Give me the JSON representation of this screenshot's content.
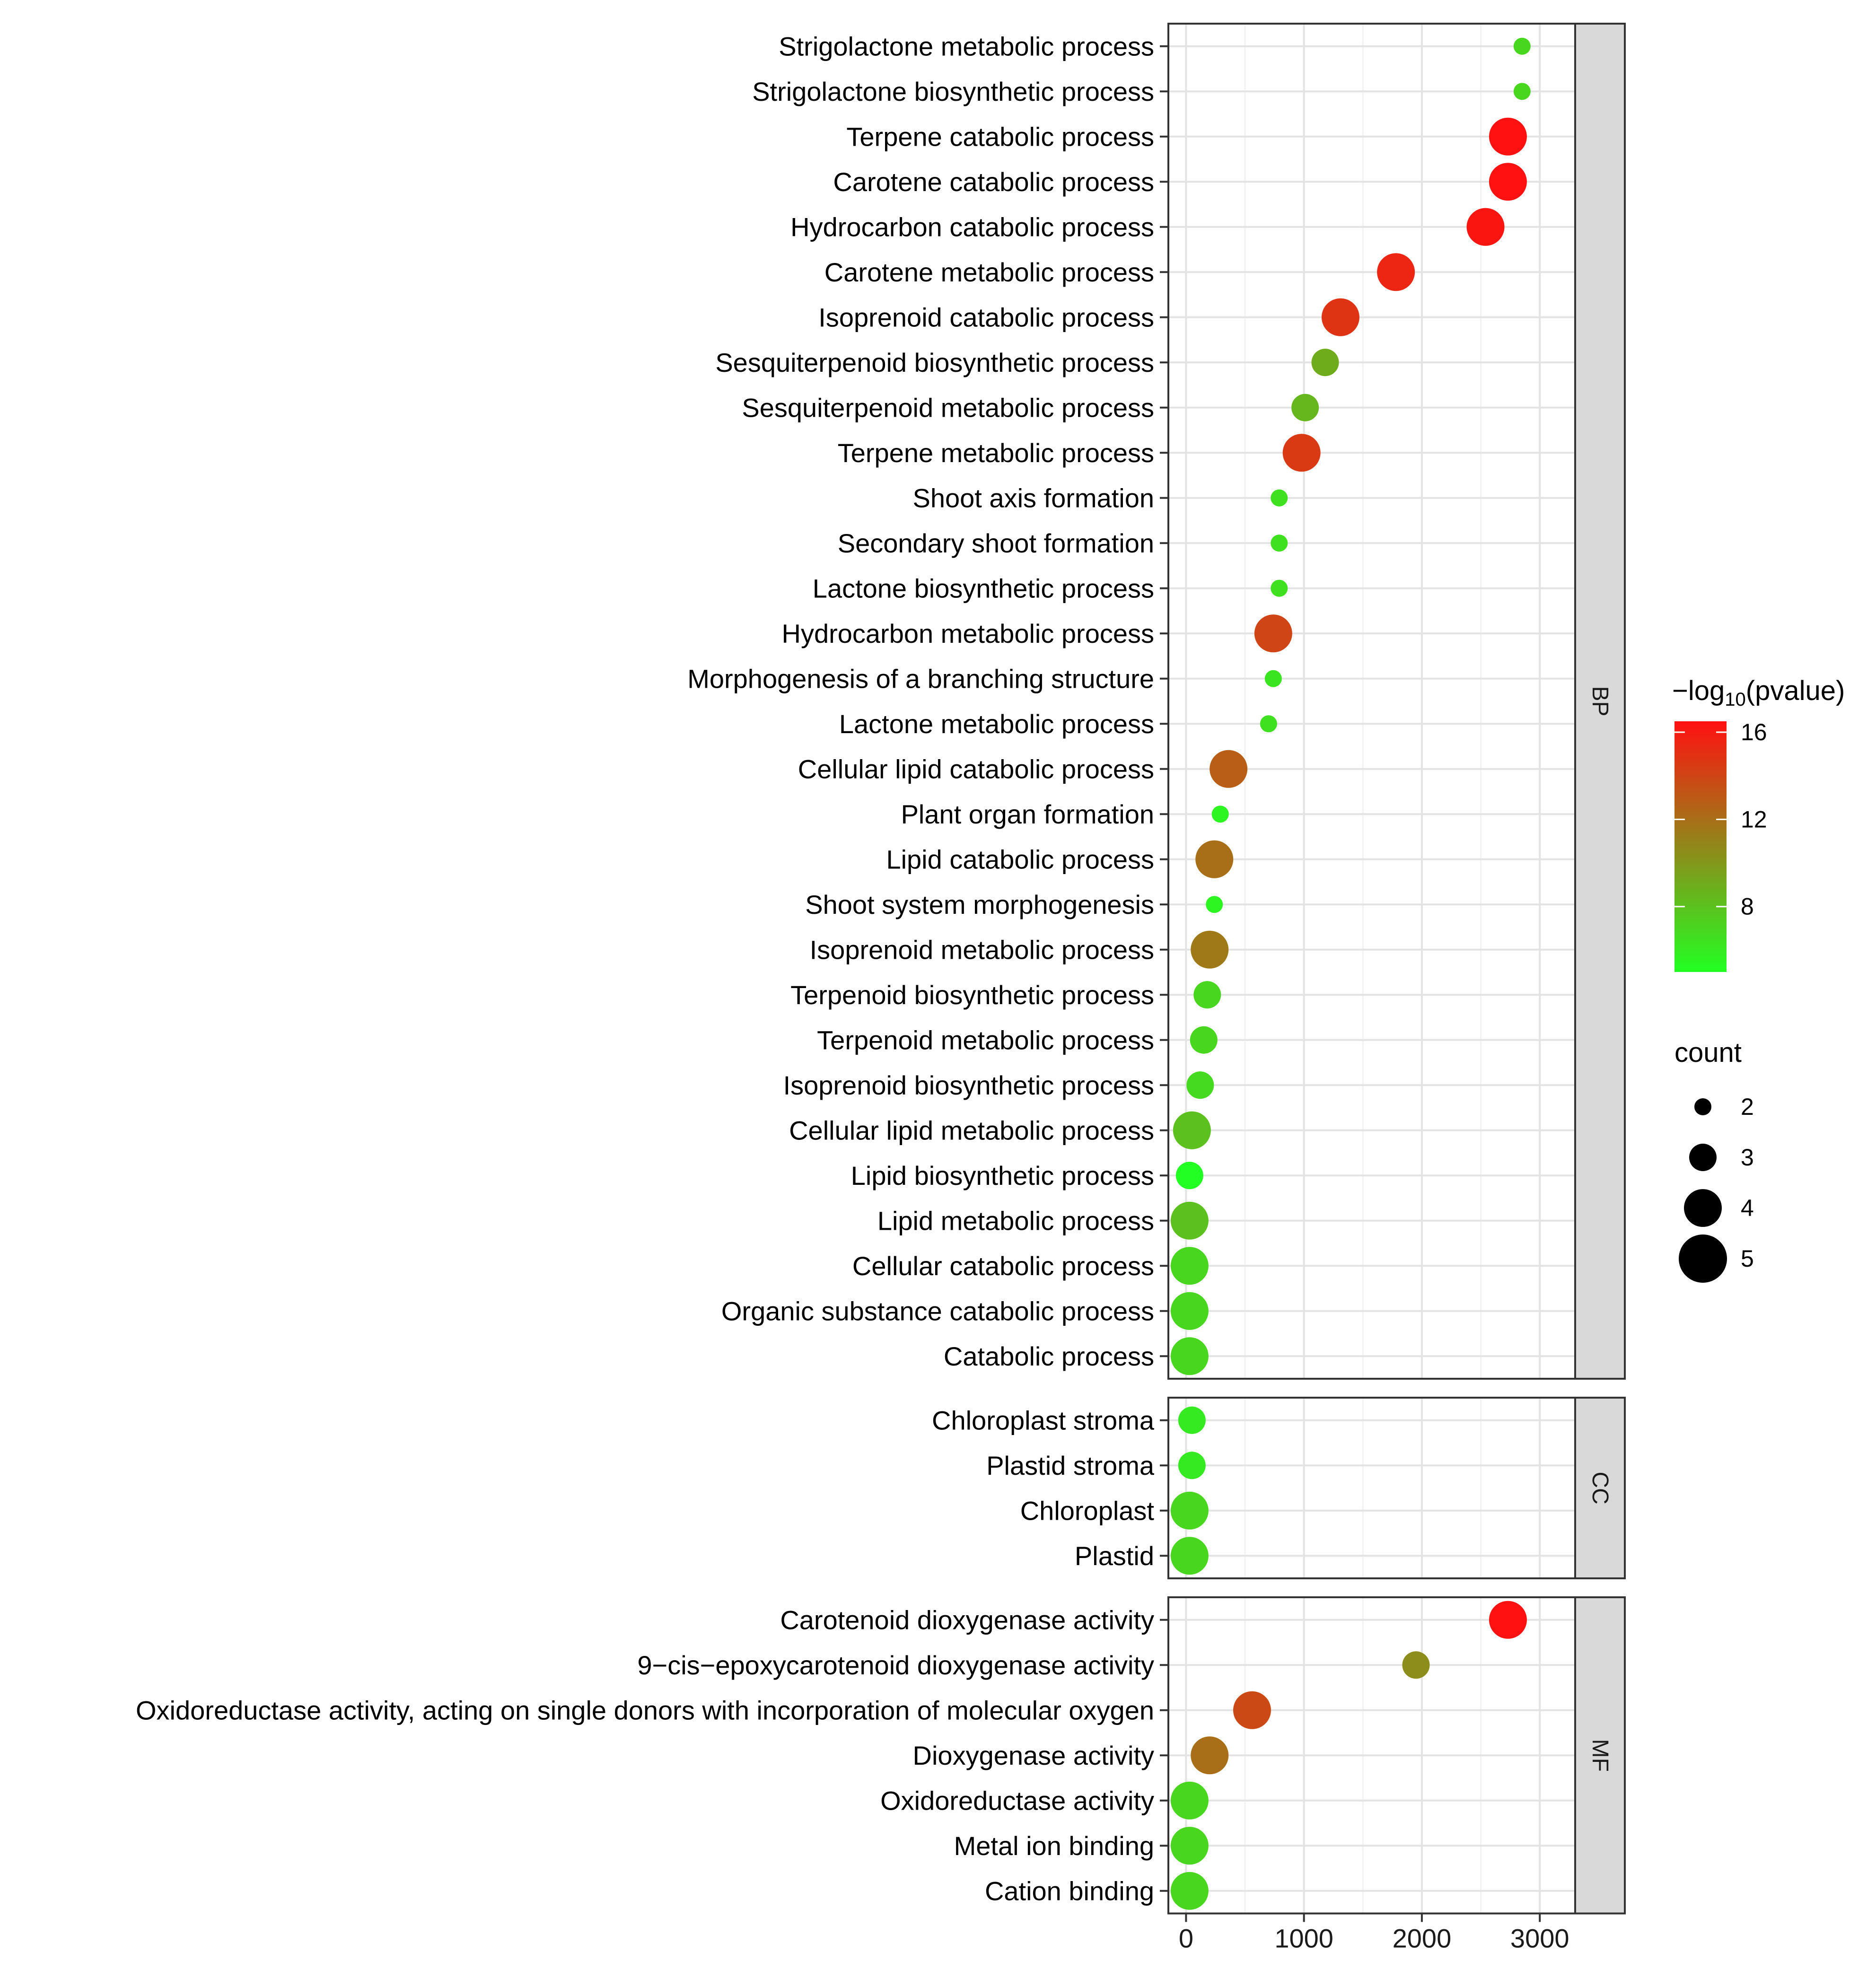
{
  "chart_data": {
    "type": "scatter",
    "title": "",
    "xlabel": "",
    "ylabel": "",
    "xlim": [
      -150,
      3300
    ],
    "x_ticks": [
      0,
      1000,
      2000,
      3000
    ],
    "x_tick_labels": [
      "0",
      "1000",
      "2000",
      "3000"
    ],
    "grid": true,
    "color_legend": {
      "title_prefix": "−log",
      "title_sub": "10",
      "title_suffix": "(pvalue)",
      "min": 5,
      "max": 16.5,
      "ticks": [
        8,
        12,
        16
      ],
      "tick_labels": [
        "8",
        "12",
        "16"
      ],
      "low_color": "#22ff22",
      "high_color": "#ff1111",
      "position": "right"
    },
    "size_legend": {
      "title": "count",
      "values": [
        2,
        3,
        4,
        5
      ],
      "labels": [
        "2",
        "3",
        "4",
        "5"
      ]
    },
    "panels": [
      {
        "name": "BP",
        "terms": [
          {
            "term": "Strigolactone metabolic process",
            "x": 2850,
            "count": 2,
            "neglog10p": 7.0
          },
          {
            "term": "Strigolactone biosynthetic process",
            "x": 2850,
            "count": 2,
            "neglog10p": 7.0
          },
          {
            "term": "Terpene catabolic process",
            "x": 2730,
            "count": 4,
            "neglog10p": 16.5
          },
          {
            "term": "Carotene catabolic process",
            "x": 2730,
            "count": 4,
            "neglog10p": 16.5
          },
          {
            "term": "Hydrocarbon catabolic process",
            "x": 2540,
            "count": 4,
            "neglog10p": 16.3
          },
          {
            "term": "Carotene metabolic process",
            "x": 1780,
            "count": 4,
            "neglog10p": 15.5
          },
          {
            "term": "Isoprenoid catabolic process",
            "x": 1310,
            "count": 4,
            "neglog10p": 14.8
          },
          {
            "term": "Sesquiterpenoid biosynthetic process",
            "x": 1180,
            "count": 3,
            "neglog10p": 9.0
          },
          {
            "term": "Sesquiterpenoid metabolic process",
            "x": 1010,
            "count": 3,
            "neglog10p": 8.5
          },
          {
            "term": "Terpene metabolic process",
            "x": 980,
            "count": 4,
            "neglog10p": 14.5
          },
          {
            "term": "Shoot axis formation",
            "x": 790,
            "count": 2,
            "neglog10p": 6.5
          },
          {
            "term": "Secondary shoot formation",
            "x": 790,
            "count": 2,
            "neglog10p": 6.5
          },
          {
            "term": "Lactone biosynthetic process",
            "x": 790,
            "count": 2,
            "neglog10p": 6.5
          },
          {
            "term": "Hydrocarbon metabolic process",
            "x": 740,
            "count": 4,
            "neglog10p": 14.0
          },
          {
            "term": "Morphogenesis of a branching structure",
            "x": 740,
            "count": 2,
            "neglog10p": 6.3
          },
          {
            "term": "Lactone metabolic process",
            "x": 700,
            "count": 2,
            "neglog10p": 6.5
          },
          {
            "term": "Cellular lipid catabolic process",
            "x": 360,
            "count": 4,
            "neglog10p": 12.8
          },
          {
            "term": "Plant organ formation",
            "x": 290,
            "count": 2,
            "neglog10p": 5.5
          },
          {
            "term": "Lipid catabolic process",
            "x": 240,
            "count": 4,
            "neglog10p": 12.0
          },
          {
            "term": "Shoot system morphogenesis",
            "x": 240,
            "count": 2,
            "neglog10p": 5.5
          },
          {
            "term": "Isoprenoid metabolic process",
            "x": 200,
            "count": 4,
            "neglog10p": 11.5
          },
          {
            "term": "Terpenoid biosynthetic process",
            "x": 180,
            "count": 3,
            "neglog10p": 7.0
          },
          {
            "term": "Terpenoid metabolic process",
            "x": 150,
            "count": 3,
            "neglog10p": 7.0
          },
          {
            "term": "Isoprenoid biosynthetic process",
            "x": 120,
            "count": 3,
            "neglog10p": 6.8
          },
          {
            "term": "Cellular lipid metabolic process",
            "x": 50,
            "count": 4,
            "neglog10p": 8.0
          },
          {
            "term": "Lipid biosynthetic process",
            "x": 30,
            "count": 3,
            "neglog10p": 5.0
          },
          {
            "term": "Lipid metabolic process",
            "x": 30,
            "count": 4,
            "neglog10p": 8.0
          },
          {
            "term": "Cellular catabolic process",
            "x": 30,
            "count": 4,
            "neglog10p": 7.0
          },
          {
            "term": "Organic substance catabolic process",
            "x": 30,
            "count": 4,
            "neglog10p": 7.0
          },
          {
            "term": "Catabolic process",
            "x": 30,
            "count": 4,
            "neglog10p": 7.0
          }
        ]
      },
      {
        "name": "CC",
        "terms": [
          {
            "term": "Chloroplast stroma",
            "x": 50,
            "count": 3,
            "neglog10p": 6.0
          },
          {
            "term": "Plastid stroma",
            "x": 50,
            "count": 3,
            "neglog10p": 6.0
          },
          {
            "term": "Chloroplast",
            "x": 30,
            "count": 4,
            "neglog10p": 7.0
          },
          {
            "term": "Plastid",
            "x": 30,
            "count": 4,
            "neglog10p": 7.0
          }
        ]
      },
      {
        "name": "MF",
        "terms": [
          {
            "term": "Carotenoid dioxygenase activity",
            "x": 2730,
            "count": 4,
            "neglog10p": 16.5
          },
          {
            "term": "9−cis−epoxycarotenoid dioxygenase activity",
            "x": 1950,
            "count": 3,
            "neglog10p": 10.5
          },
          {
            "term": "Oxidoreductase activity, acting on single donors with incorporation of molecular oxygen",
            "x": 560,
            "count": 4,
            "neglog10p": 13.8
          },
          {
            "term": "Dioxygenase activity",
            "x": 200,
            "count": 4,
            "neglog10p": 12.0
          },
          {
            "term": "Oxidoreductase activity",
            "x": 30,
            "count": 4,
            "neglog10p": 7.0
          },
          {
            "term": "Metal ion binding",
            "x": 30,
            "count": 4,
            "neglog10p": 7.0
          },
          {
            "term": "Cation binding",
            "x": 30,
            "count": 4,
            "neglog10p": 7.0
          }
        ]
      }
    ]
  }
}
